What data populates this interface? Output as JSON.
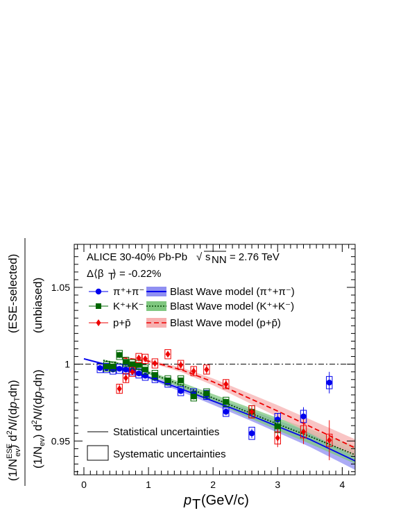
{
  "chart_data": {
    "type": "scatter",
    "annotations": {
      "system": "ALICE 30-40% Pb-Pb",
      "energy": "= 2.76 TeV",
      "beta": "= -0.22%"
    },
    "xlabel": "(GeV/c)",
    "ylabel_outer": "(ESE-selected)",
    "ylabel_inner": "(unbiased)",
    "xlim": [
      -0.15,
      4.2
    ],
    "ylim": [
      0.928,
      1.078
    ],
    "x_ticks": [
      "0",
      "1",
      "2",
      "3",
      "4"
    ],
    "y_ticks": [
      "0.95",
      "1",
      "1.05"
    ],
    "reference_line": 1.0,
    "legend": {
      "pion": "π⁺+π⁻",
      "kaon": "K⁺+K⁻",
      "proton": "p+p̄",
      "bw_pion": "Blast Wave model (π⁺+π⁻)",
      "bw_kaon": "Blast Wave model (K⁺+K⁻)",
      "bw_proton": "Blast Wave model (p+p̄)",
      "stat": "Statistical uncertainties",
      "syst": "Systematic uncertainties"
    },
    "series": [
      {
        "name": "π⁺+π⁻",
        "color": "#0000ee",
        "marker": "circle",
        "x": [
          0.25,
          0.35,
          0.45,
          0.55,
          0.65,
          0.75,
          0.85,
          0.95,
          1.1,
          1.3,
          1.5,
          1.7,
          1.9,
          2.2,
          2.6,
          3.0,
          3.4,
          3.8
        ],
        "y": [
          0.9975,
          0.9975,
          0.9965,
          0.997,
          0.9965,
          0.996,
          0.994,
          0.9925,
          0.991,
          0.988,
          0.9825,
          0.981,
          0.98,
          0.969,
          0.955,
          0.964,
          0.966,
          0.988
        ],
        "stat": [
          0.001,
          0.001,
          0.001,
          0.001,
          0.001,
          0.001,
          0.001,
          0.001,
          0.001,
          0.001,
          0.0015,
          0.0015,
          0.002,
          0.002,
          0.003,
          0.004,
          0.006,
          0.007
        ],
        "syst": [
          0.003,
          0.003,
          0.003,
          0.003,
          0.003,
          0.003,
          0.003,
          0.003,
          0.003,
          0.003,
          0.003,
          0.003,
          0.003,
          0.003,
          0.004,
          0.004,
          0.004,
          0.004
        ]
      },
      {
        "name": "K⁺+K⁻",
        "color": "#006600",
        "marker": "square",
        "x": [
          0.35,
          0.45,
          0.55,
          0.65,
          0.75,
          0.85,
          0.95,
          1.1,
          1.3,
          1.5,
          1.7,
          1.9,
          2.2,
          2.6,
          3.0
        ],
        "y": [
          0.9985,
          0.9985,
          1.006,
          1.0015,
          1.0,
          0.9995,
          0.9965,
          0.993,
          0.9895,
          0.9895,
          0.979,
          0.981,
          0.9755,
          0.969,
          0.9595
        ],
        "stat": [
          0.001,
          0.001,
          0.002,
          0.001,
          0.001,
          0.001,
          0.001,
          0.001,
          0.001,
          0.0015,
          0.002,
          0.002,
          0.002,
          0.003,
          0.004
        ],
        "syst": [
          0.003,
          0.003,
          0.003,
          0.003,
          0.003,
          0.003,
          0.003,
          0.003,
          0.003,
          0.003,
          0.003,
          0.003,
          0.003,
          0.004,
          0.004
        ]
      },
      {
        "name": "p+p̄",
        "color": "#ee0000",
        "marker": "diamond",
        "x": [
          0.55,
          0.65,
          0.75,
          0.85,
          0.95,
          1.1,
          1.3,
          1.5,
          1.7,
          1.9,
          2.2,
          2.6,
          3.0,
          3.4,
          3.8
        ],
        "y": [
          0.984,
          0.991,
          0.995,
          1.004,
          1.0035,
          1.0005,
          1.0065,
          0.9995,
          0.9955,
          0.9965,
          0.987,
          0.969,
          0.952,
          0.956,
          0.9505
        ],
        "stat": [
          0.003,
          0.003,
          0.002,
          0.002,
          0.002,
          0.002,
          0.002,
          0.0025,
          0.003,
          0.003,
          0.003,
          0.004,
          0.006,
          0.008,
          0.013
        ],
        "syst": [
          0.003,
          0.003,
          0.003,
          0.003,
          0.003,
          0.003,
          0.003,
          0.003,
          0.003,
          0.003,
          0.003,
          0.004,
          0.004,
          0.004,
          0.004
        ]
      }
    ],
    "models": [
      {
        "name": "Blast Wave model (π⁺+π⁻)",
        "color": "#0000ee",
        "band": "#8f8ff2",
        "dash": "",
        "x": [
          0,
          0.5,
          1.0,
          1.5,
          2.0,
          2.5,
          3.0,
          3.5,
          4.2
        ],
        "y": [
          1.0035,
          0.998,
          0.9915,
          0.984,
          0.976,
          0.968,
          0.9595,
          0.951,
          0.937
        ],
        "halfwidth": [
          0.0005,
          0.0008,
          0.001,
          0.0018,
          0.0025,
          0.0033,
          0.004,
          0.0048,
          0.0058
        ]
      },
      {
        "name": "Blast Wave model (K⁺+K⁻)",
        "color": "#004400",
        "band": "#7fc77f",
        "dash": "2,2",
        "x": [
          0.3,
          0.7,
          1.0,
          1.5,
          2.0,
          2.5,
          3.0,
          3.5,
          4.2
        ],
        "y": [
          1.0025,
          0.999,
          0.9945,
          0.9865,
          0.978,
          0.9695,
          0.961,
          0.953,
          0.941
        ],
        "halfwidth": [
          0.0005,
          0.0008,
          0.001,
          0.0018,
          0.0025,
          0.0033,
          0.004,
          0.0048,
          0.0058
        ]
      },
      {
        "name": "Blast Wave model (p+p̄)",
        "color": "#ee0000",
        "band": "#f7b0b0",
        "dash": "7,4",
        "x": [
          0.6,
          1.0,
          1.5,
          2.0,
          2.5,
          3.0,
          3.5,
          4.2
        ],
        "y": [
          1.0042,
          1.002,
          0.9965,
          0.9885,
          0.979,
          0.9695,
          0.9595,
          0.9455
        ],
        "halfwidth": [
          0.0005,
          0.0008,
          0.0015,
          0.0022,
          0.003,
          0.0038,
          0.0046,
          0.0056
        ]
      }
    ]
  }
}
